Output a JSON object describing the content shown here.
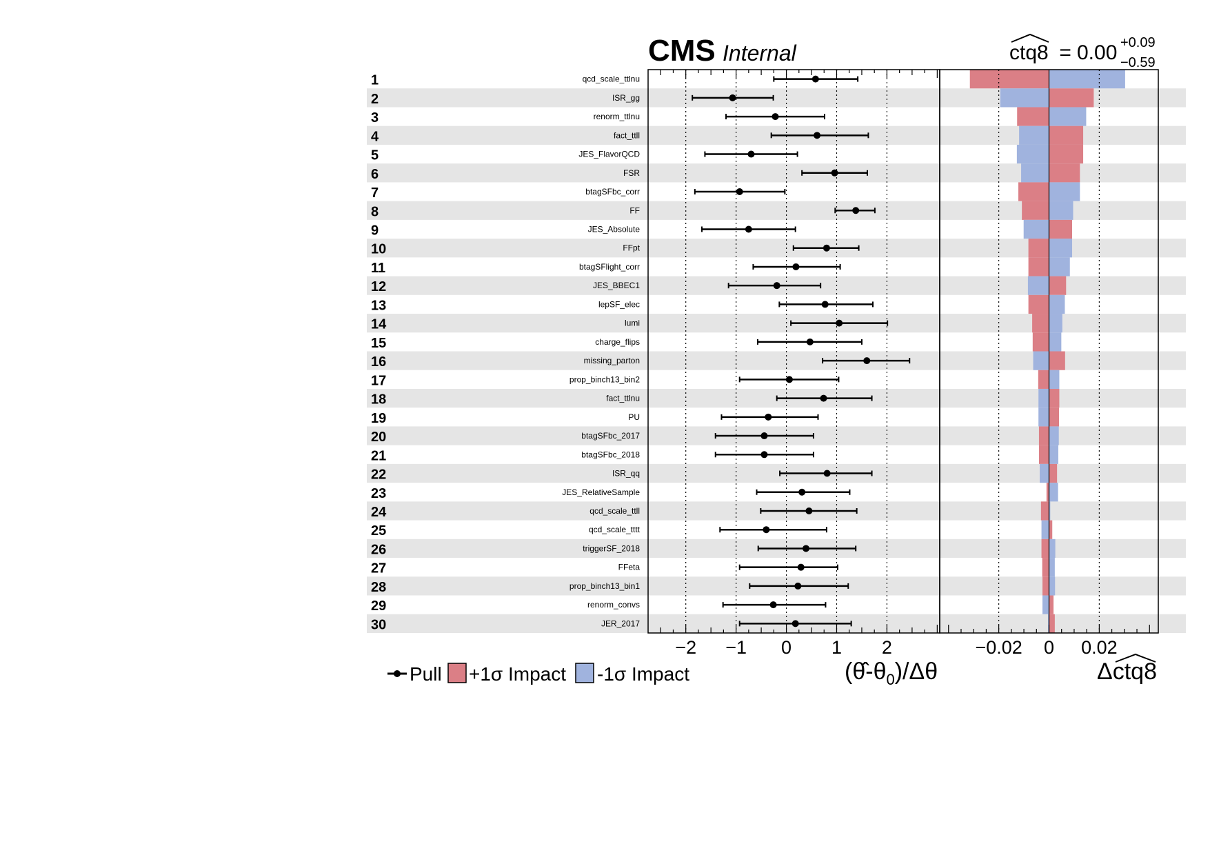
{
  "header": {
    "experiment": "CMS",
    "status": "Internal",
    "poi_result": {
      "name": "ctq8",
      "equals": " = ",
      "value": "0.00",
      "err_up": "+0.09",
      "err_down": "−0.59"
    }
  },
  "legend": {
    "pull_label": "Pull",
    "up_label": "+1σ Impact",
    "down_label": "-1σ Impact"
  },
  "colors": {
    "up_impact": "#db7f86",
    "down_impact": "#a0b3de",
    "band": "#e5e5e5"
  },
  "chart_data": [
    {
      "type": "scatter",
      "panel": "pulls",
      "xlabel_parts": [
        "(",
        "θ̂",
        "-θ",
        "0",
        ")/Δθ"
      ],
      "xlim": [
        -2.75,
        3.05
      ],
      "xticks": [
        -2,
        -1,
        0,
        1,
        2
      ],
      "xtick_labels": [
        "−2",
        "−1",
        "0",
        "1",
        "2"
      ],
      "ranks": [
        "1",
        "2",
        "3",
        "4",
        "5",
        "6",
        "7",
        "8",
        "9",
        "10",
        "11",
        "12",
        "13",
        "14",
        "15",
        "16",
        "17",
        "18",
        "19",
        "20",
        "21",
        "22",
        "23",
        "24",
        "25",
        "26",
        "27",
        "28",
        "29",
        "30"
      ],
      "categories": [
        "qcd_scale_ttlnu",
        "ISR_gg",
        "renorm_ttlnu",
        "fact_ttll",
        "JES_FlavorQCD",
        "FSR",
        "btagSFbc_corr",
        "FF",
        "JES_Absolute",
        "FFpt",
        "btagSFlight_corr",
        "JES_BBEC1",
        "lepSF_elec",
        "lumi",
        "charge_flips",
        "missing_parton",
        "prop_binch13_bin2",
        "fact_ttlnu",
        "PU",
        "btagSFbc_2017",
        "btagSFbc_2018",
        "ISR_qq",
        "JES_RelativeSample",
        "qcd_scale_ttll",
        "qcd_scale_tttt",
        "triggerSF_2018",
        "FFeta",
        "prop_binch13_bin1",
        "renorm_convs",
        "JER_2017"
      ],
      "pull": [
        0.58,
        -1.07,
        -0.22,
        0.61,
        -0.7,
        0.96,
        -0.93,
        1.38,
        -0.75,
        0.8,
        0.19,
        -0.19,
        0.77,
        1.05,
        0.47,
        1.6,
        0.06,
        0.74,
        -0.36,
        -0.44,
        -0.44,
        0.81,
        0.31,
        0.45,
        -0.4,
        0.39,
        0.29,
        0.23,
        -0.26,
        0.18
      ],
      "err_low": [
        -0.25,
        -1.87,
        -1.2,
        -0.3,
        -1.62,
        0.31,
        -1.82,
        0.97,
        -1.68,
        0.14,
        -0.66,
        -1.15,
        -0.14,
        0.09,
        -0.57,
        0.72,
        -0.93,
        -0.19,
        -1.29,
        -1.41,
        -1.41,
        -0.13,
        -0.59,
        -0.51,
        -1.32,
        -0.56,
        -0.93,
        -0.73,
        -1.26,
        -0.93
      ],
      "err_high": [
        1.42,
        -0.26,
        0.76,
        1.63,
        0.22,
        1.61,
        -0.03,
        1.76,
        0.18,
        1.44,
        1.07,
        0.68,
        1.72,
        2.01,
        1.5,
        2.45,
        1.04,
        1.7,
        0.63,
        0.54,
        0.54,
        1.7,
        1.26,
        1.4,
        0.8,
        1.38,
        1.02,
        1.23,
        0.78,
        1.29
      ]
    },
    {
      "type": "bar",
      "panel": "impacts",
      "xlabel_parts": [
        "Δ",
        "ctq8"
      ],
      "xlim": [
        -0.0435,
        0.0435
      ],
      "xticks": [
        -0.02,
        0,
        0.02
      ],
      "xtick_labels": [
        "−0.02",
        "0",
        "0.02"
      ],
      "series": [
        {
          "name": "+1σ Impact",
          "values": [
            -0.0315,
            0.0178,
            -0.0127,
            0.0136,
            0.0136,
            0.0123,
            -0.0122,
            -0.0108,
            0.0092,
            -0.0082,
            -0.0082,
            0.0068,
            -0.0082,
            -0.0067,
            -0.0065,
            0.0064,
            -0.0043,
            0.0041,
            0.004,
            -0.004,
            -0.004,
            0.0032,
            -0.001,
            -0.0032,
            0.0013,
            -0.003,
            -0.0027,
            -0.0026,
            0.0018,
            0.0023
          ]
        },
        {
          "name": "-1σ Impact",
          "values": [
            0.0303,
            -0.0194,
            0.0148,
            -0.0119,
            -0.0128,
            -0.0111,
            0.0123,
            0.0096,
            -0.0101,
            0.0092,
            0.0083,
            -0.0084,
            0.0063,
            0.0053,
            0.0049,
            -0.0063,
            0.0041,
            -0.0042,
            -0.0042,
            0.0039,
            0.0037,
            -0.0037,
            0.0036,
            0.0005,
            -0.003,
            0.0025,
            0.0023,
            0.0024,
            -0.0026,
            -0.0004
          ]
        }
      ]
    }
  ]
}
